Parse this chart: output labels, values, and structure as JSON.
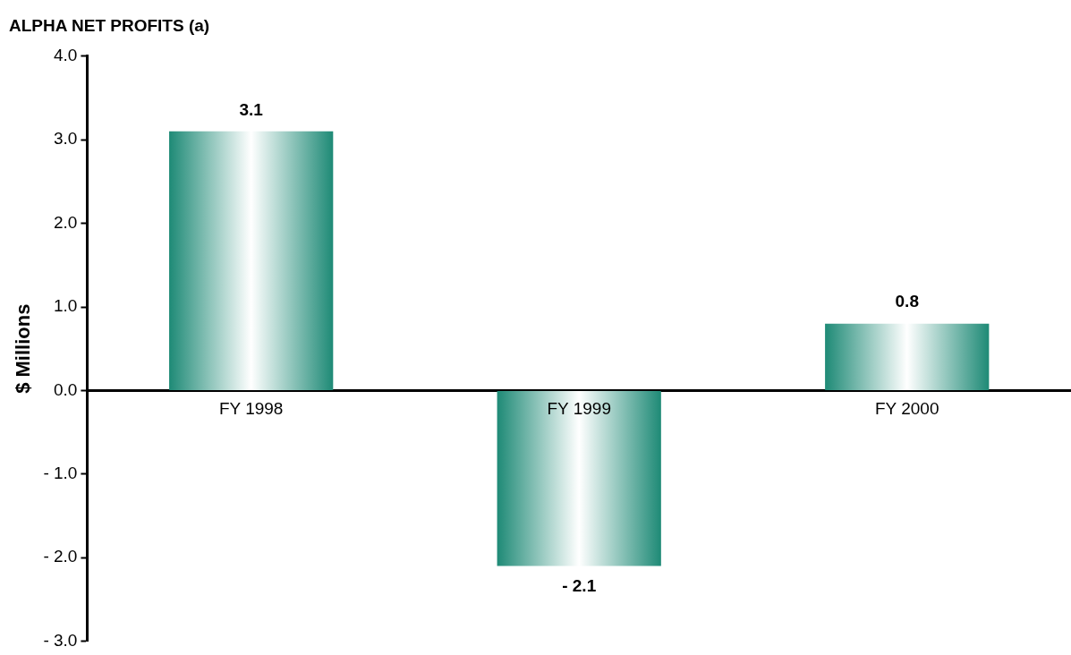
{
  "chart_data": {
    "type": "bar",
    "title": "ALPHA NET PROFITS (a)",
    "ylabel": "$ Millions",
    "categories": [
      "FY 1998",
      "FY 1999",
      "FY 2000"
    ],
    "values": [
      3.1,
      -2.1,
      0.8
    ],
    "color": "#1e8a76",
    "ylim": [
      -3,
      4
    ],
    "yticks": [
      {
        "value": 4,
        "label": "4.0"
      },
      {
        "value": 3,
        "label": "3.0"
      },
      {
        "value": 2,
        "label": "2.0"
      },
      {
        "value": 1,
        "label": "1.0"
      },
      {
        "value": 0,
        "label": "0.0"
      },
      {
        "value": -1,
        "label": "- 1.0"
      },
      {
        "value": -2,
        "label": "- 2.0"
      },
      {
        "value": -3,
        "label": "- 3.0"
      }
    ],
    "value_labels": [
      "3.1",
      "- 2.1",
      "0.8"
    ],
    "grid": false,
    "legend": false
  }
}
